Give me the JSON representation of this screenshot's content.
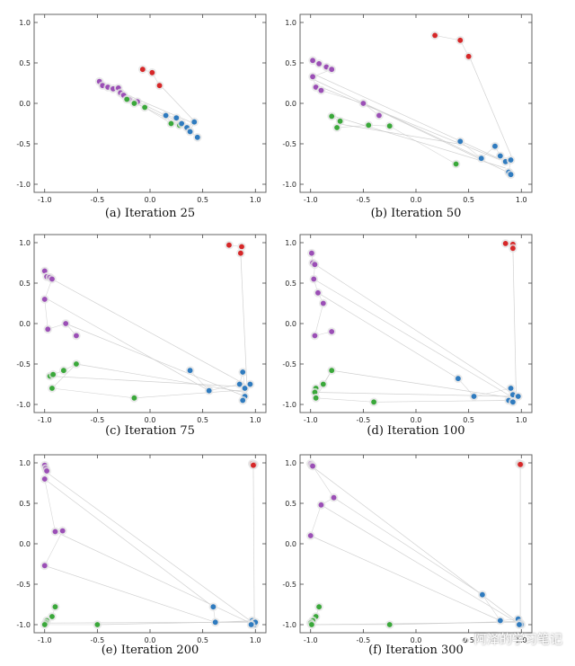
{
  "colors": {
    "red": "#d62728",
    "purple": "#9b4fb6",
    "green": "#3aa83a",
    "blue": "#2f7bbf",
    "edge": "#cccccc",
    "frame": "#666666"
  },
  "watermark": {
    "icon": "wechat-icon",
    "text": "阿泽的学习笔记"
  },
  "chart_data": [
    {
      "type": "scatter",
      "title": "(a) Iteration 25",
      "xlim": [
        -1.1,
        1.1
      ],
      "ylim": [
        -1.1,
        1.1
      ],
      "xticks": [
        -1.0,
        -0.5,
        0.0,
        0.5,
        1.0
      ],
      "yticks": [
        1.0,
        0.5,
        0.0,
        -0.5,
        -1.0
      ],
      "series": [
        {
          "name": "red",
          "color": "red",
          "points": [
            [
              -0.07,
              0.42
            ],
            [
              0.02,
              0.38
            ],
            [
              0.09,
              0.22
            ]
          ]
        },
        {
          "name": "purple",
          "color": "purple",
          "points": [
            [
              -0.48,
              0.27
            ],
            [
              -0.45,
              0.22
            ],
            [
              -0.4,
              0.2
            ],
            [
              -0.35,
              0.18
            ],
            [
              -0.3,
              0.19
            ],
            [
              -0.28,
              0.13
            ],
            [
              -0.25,
              0.1
            ],
            [
              -0.2,
              0.05
            ],
            [
              -0.12,
              0.02
            ]
          ]
        },
        {
          "name": "green",
          "color": "green",
          "points": [
            [
              -0.22,
              0.05
            ],
            [
              -0.15,
              0.0
            ],
            [
              -0.05,
              -0.05
            ],
            [
              0.2,
              -0.25
            ],
            [
              0.28,
              -0.27
            ]
          ]
        },
        {
          "name": "blue",
          "color": "blue",
          "points": [
            [
              0.15,
              -0.15
            ],
            [
              0.25,
              -0.18
            ],
            [
              0.3,
              -0.25
            ],
            [
              0.35,
              -0.3
            ],
            [
              0.42,
              -0.23
            ],
            [
              0.38,
              -0.35
            ],
            [
              0.45,
              -0.42
            ]
          ]
        }
      ],
      "edges": [
        [
          -0.5,
          0.27,
          0.38,
          -0.3
        ],
        [
          -0.3,
          0.15,
          0.42,
          -0.25
        ],
        [
          0.1,
          0.22,
          0.42,
          -0.22
        ],
        [
          -0.2,
          0.05,
          0.3,
          -0.28
        ]
      ]
    },
    {
      "type": "scatter",
      "title": "(b) Iteration 50",
      "xlim": [
        -1.1,
        1.1
      ],
      "ylim": [
        -1.1,
        1.1
      ],
      "xticks": [
        -1.0,
        -0.5,
        0.0,
        0.5,
        1.0
      ],
      "yticks": [
        1.0,
        0.5,
        0.0,
        -0.5,
        -1.0
      ],
      "series": [
        {
          "name": "red",
          "color": "red",
          "points": [
            [
              0.18,
              0.84
            ],
            [
              0.42,
              0.78
            ],
            [
              0.5,
              0.58
            ]
          ]
        },
        {
          "name": "purple",
          "color": "purple",
          "points": [
            [
              -0.98,
              0.53
            ],
            [
              -0.92,
              0.49
            ],
            [
              -0.85,
              0.45
            ],
            [
              -0.8,
              0.42
            ],
            [
              -0.98,
              0.33
            ],
            [
              -0.95,
              0.2
            ],
            [
              -0.9,
              0.16
            ],
            [
              -0.5,
              0.0
            ],
            [
              -0.35,
              -0.15
            ]
          ]
        },
        {
          "name": "green",
          "color": "green",
          "points": [
            [
              -0.8,
              -0.16
            ],
            [
              -0.72,
              -0.22
            ],
            [
              -0.75,
              -0.3
            ],
            [
              -0.45,
              -0.27
            ],
            [
              -0.25,
              -0.28
            ],
            [
              0.38,
              -0.75
            ]
          ]
        },
        {
          "name": "blue",
          "color": "blue",
          "points": [
            [
              0.42,
              -0.47
            ],
            [
              0.62,
              -0.68
            ],
            [
              0.75,
              -0.53
            ],
            [
              0.8,
              -0.65
            ],
            [
              0.85,
              -0.72
            ],
            [
              0.9,
              -0.7
            ],
            [
              0.88,
              -0.85
            ],
            [
              0.9,
              -0.88
            ]
          ]
        }
      ],
      "edges": [
        [
          0.5,
          0.6,
          0.92,
          -0.7
        ],
        [
          -0.95,
          0.35,
          0.9,
          -0.75
        ],
        [
          -0.8,
          -0.15,
          0.85,
          -0.8
        ],
        [
          -0.75,
          -0.25,
          0.4,
          -0.5
        ],
        [
          -0.9,
          0.2,
          0.8,
          -0.7
        ],
        [
          -0.5,
          0.0,
          0.9,
          -0.87
        ],
        [
          -0.98,
          0.3,
          0.62,
          -0.68
        ]
      ]
    },
    {
      "type": "scatter",
      "title": "(c) Iteration 75",
      "xlim": [
        -1.1,
        1.1
      ],
      "ylim": [
        -1.1,
        1.1
      ],
      "xticks": [
        -1.0,
        -0.5,
        0.0,
        0.5,
        1.0
      ],
      "yticks": [
        1.0,
        0.5,
        0.0,
        -0.5,
        -1.0
      ],
      "series": [
        {
          "name": "red",
          "color": "red",
          "points": [
            [
              0.75,
              0.97
            ],
            [
              0.87,
              0.95
            ],
            [
              0.86,
              0.87
            ]
          ]
        },
        {
          "name": "purple",
          "color": "purple",
          "points": [
            [
              -1.0,
              0.65
            ],
            [
              -0.98,
              0.58
            ],
            [
              -0.95,
              0.57
            ],
            [
              -0.93,
              0.55
            ],
            [
              -1.0,
              0.3
            ],
            [
              -0.97,
              -0.07
            ],
            [
              -0.8,
              0.0
            ],
            [
              -0.7,
              -0.15
            ]
          ]
        },
        {
          "name": "green",
          "color": "green",
          "points": [
            [
              -0.95,
              -0.65
            ],
            [
              -0.92,
              -0.63
            ],
            [
              -0.82,
              -0.58
            ],
            [
              -0.7,
              -0.5
            ],
            [
              -0.93,
              -0.8
            ],
            [
              -0.15,
              -0.92
            ]
          ]
        },
        {
          "name": "blue",
          "color": "blue",
          "points": [
            [
              0.38,
              -0.58
            ],
            [
              0.56,
              -0.83
            ],
            [
              0.85,
              -0.75
            ],
            [
              0.88,
              -0.6
            ],
            [
              0.9,
              -0.8
            ],
            [
              0.95,
              -0.75
            ],
            [
              0.9,
              -0.9
            ],
            [
              0.88,
              -0.95
            ]
          ]
        }
      ],
      "edges": [
        [
          0.86,
          0.87,
          0.92,
          -0.78
        ],
        [
          -1.0,
          0.6,
          0.9,
          -0.75
        ],
        [
          -0.95,
          -0.65,
          0.88,
          -0.78
        ],
        [
          -0.97,
          0.3,
          0.56,
          -0.83
        ],
        [
          -0.8,
          0.0,
          0.9,
          -0.9
        ],
        [
          -0.7,
          -0.5,
          0.9,
          -0.85
        ],
        [
          -0.15,
          -0.92,
          0.9,
          -0.82
        ]
      ]
    },
    {
      "type": "scatter",
      "title": "(d) Iteration 100",
      "xlim": [
        -1.1,
        1.1
      ],
      "ylim": [
        -1.1,
        1.1
      ],
      "xticks": [
        -1.0,
        -0.5,
        0.0,
        0.5,
        1.0
      ],
      "yticks": [
        1.0,
        0.5,
        0.0,
        -0.5,
        -1.0
      ],
      "series": [
        {
          "name": "red",
          "color": "red",
          "points": [
            [
              0.85,
              0.99
            ],
            [
              0.92,
              0.98
            ],
            [
              0.92,
              0.93
            ]
          ]
        },
        {
          "name": "purple",
          "color": "purple",
          "points": [
            [
              -0.99,
              0.87
            ],
            [
              -0.98,
              0.75
            ],
            [
              -0.96,
              0.73
            ],
            [
              -0.97,
              0.55
            ],
            [
              -0.93,
              0.38
            ],
            [
              -0.88,
              0.25
            ],
            [
              -0.96,
              -0.15
            ],
            [
              -0.8,
              -0.1
            ]
          ]
        },
        {
          "name": "green",
          "color": "green",
          "points": [
            [
              -0.95,
              -0.8
            ],
            [
              -0.96,
              -0.85
            ],
            [
              -0.88,
              -0.75
            ],
            [
              -0.8,
              -0.58
            ],
            [
              -0.95,
              -0.92
            ],
            [
              -0.4,
              -0.97
            ]
          ]
        },
        {
          "name": "blue",
          "color": "blue",
          "points": [
            [
              0.4,
              -0.68
            ],
            [
              0.55,
              -0.9
            ],
            [
              0.9,
              -0.8
            ],
            [
              0.92,
              -0.88
            ],
            [
              0.97,
              -0.9
            ],
            [
              0.88,
              -0.95
            ],
            [
              0.92,
              -0.97
            ]
          ]
        }
      ],
      "edges": [
        [
          0.92,
          0.93,
          0.95,
          -0.85
        ],
        [
          -0.98,
          0.75,
          0.9,
          -0.85
        ],
        [
          -0.96,
          -0.85,
          0.9,
          -0.9
        ],
        [
          -0.93,
          0.38,
          0.4,
          -0.68
        ],
        [
          -0.8,
          -0.58,
          0.92,
          -0.92
        ],
        [
          -0.4,
          -0.97,
          0.88,
          -0.95
        ],
        [
          -0.97,
          0.55,
          0.9,
          -0.9
        ]
      ]
    },
    {
      "type": "scatter",
      "title": "(e) Iteration 200",
      "xlim": [
        -1.1,
        1.1
      ],
      "ylim": [
        -1.1,
        1.1
      ],
      "xticks": [
        -1.0,
        -0.5,
        0.0,
        0.5,
        1.0
      ],
      "yticks": [
        1.0,
        0.5,
        0.0,
        -0.5,
        -1.0
      ],
      "series": [
        {
          "name": "red",
          "color": "red",
          "points": [
            [
              0.97,
              0.99
            ],
            [
              0.99,
              0.98
            ],
            [
              0.98,
              0.97
            ]
          ]
        },
        {
          "name": "purple",
          "color": "purple",
          "points": [
            [
              -1.0,
              0.97
            ],
            [
              -0.99,
              0.93
            ],
            [
              -0.98,
              0.9
            ],
            [
              -1.0,
              0.8
            ],
            [
              -0.9,
              0.15
            ],
            [
              -0.83,
              0.16
            ],
            [
              -1.0,
              -0.27
            ]
          ]
        },
        {
          "name": "green",
          "color": "green",
          "points": [
            [
              -0.9,
              -0.78
            ],
            [
              -0.93,
              -0.9
            ],
            [
              -0.98,
              -0.95
            ],
            [
              -0.99,
              -0.98
            ],
            [
              -1.0,
              -1.0
            ],
            [
              -0.5,
              -1.0
            ]
          ]
        },
        {
          "name": "blue",
          "color": "blue",
          "points": [
            [
              0.6,
              -0.78
            ],
            [
              0.62,
              -0.97
            ],
            [
              0.97,
              -0.95
            ],
            [
              0.98,
              -0.98
            ],
            [
              0.99,
              -1.0
            ],
            [
              1.0,
              -0.97
            ],
            [
              0.96,
              -1.0
            ]
          ]
        }
      ],
      "edges": [
        [
          0.98,
          0.97,
          0.99,
          -0.98
        ],
        [
          -1.0,
          0.9,
          0.98,
          -0.98
        ],
        [
          -0.99,
          -0.98,
          0.98,
          -0.97
        ],
        [
          -1.0,
          0.8,
          0.6,
          -0.78
        ],
        [
          -0.9,
          0.15,
          0.97,
          -0.99
        ],
        [
          -0.5,
          -1.0,
          0.97,
          -0.96
        ],
        [
          -1.0,
          -0.27,
          0.62,
          -0.97
        ]
      ]
    },
    {
      "type": "scatter",
      "title": "(f) Iteration 300",
      "xlim": [
        -1.1,
        1.1
      ],
      "ylim": [
        -1.1,
        1.1
      ],
      "xticks": [
        -1.0,
        -0.5,
        0.0,
        0.5,
        1.0
      ],
      "yticks": [
        1.0,
        0.5,
        0.0,
        -0.5,
        -1.0
      ],
      "series": [
        {
          "name": "red",
          "color": "red",
          "points": [
            [
              0.98,
              0.99
            ],
            [
              1.0,
              0.98
            ],
            [
              0.99,
              0.98
            ]
          ]
        },
        {
          "name": "purple",
          "color": "purple",
          "points": [
            [
              -1.0,
              0.99
            ],
            [
              -0.99,
              0.97
            ],
            [
              -0.98,
              0.96
            ],
            [
              -0.78,
              0.57
            ],
            [
              -0.9,
              0.48
            ],
            [
              -1.0,
              0.1
            ]
          ]
        },
        {
          "name": "green",
          "color": "green",
          "points": [
            [
              -0.92,
              -0.78
            ],
            [
              -0.95,
              -0.9
            ],
            [
              -0.98,
              -0.95
            ],
            [
              -1.0,
              -0.98
            ],
            [
              -0.99,
              -1.0
            ],
            [
              -0.25,
              -1.0
            ]
          ]
        },
        {
          "name": "blue",
          "color": "blue",
          "points": [
            [
              0.63,
              -0.63
            ],
            [
              0.8,
              -0.95
            ],
            [
              0.97,
              -0.93
            ],
            [
              0.99,
              -0.98
            ],
            [
              1.0,
              -1.0
            ],
            [
              0.98,
              -1.0
            ]
          ]
        }
      ],
      "edges": [
        [
          0.99,
          0.98,
          0.99,
          -0.98
        ],
        [
          -1.0,
          0.97,
          0.98,
          -0.98
        ],
        [
          -0.99,
          -1.0,
          0.98,
          -0.97
        ],
        [
          -0.78,
          0.57,
          0.63,
          -0.63
        ],
        [
          -0.9,
          0.48,
          0.98,
          -0.99
        ],
        [
          -0.25,
          -1.0,
          0.97,
          -0.96
        ],
        [
          -1.0,
          0.1,
          0.8,
          -0.95
        ]
      ]
    }
  ]
}
